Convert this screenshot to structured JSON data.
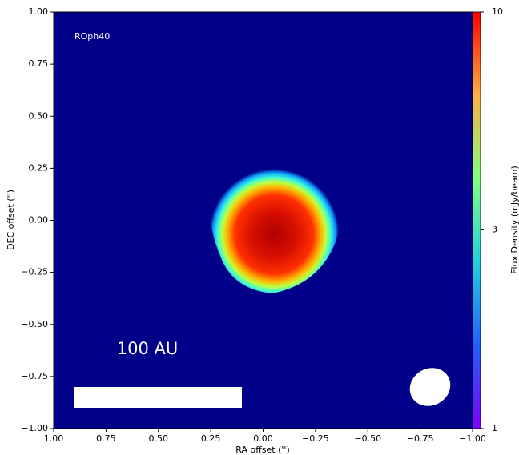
{
  "chart_data": {
    "type": "image",
    "annotations": [
      "ROph40",
      "100 AU"
    ],
    "xlabel": "RA offset ('')",
    "ylabel": "DEC offset ('')",
    "xlim": [
      1,
      -1
    ],
    "ylim": [
      -1,
      1
    ],
    "xticks": [
      {
        "value": 1,
        "label": "1.00"
      },
      {
        "value": 0.75,
        "label": "0.75"
      },
      {
        "value": 0.5,
        "label": "0.50"
      },
      {
        "value": 0.25,
        "label": "0.25"
      },
      {
        "value": 0,
        "label": "0.00"
      },
      {
        "value": -0.25,
        "label": "−0.25"
      },
      {
        "value": -0.5,
        "label": "−0.50"
      },
      {
        "value": -0.75,
        "label": "−0.75"
      },
      {
        "value": -1,
        "label": "−1.00"
      }
    ],
    "yticks": [
      {
        "value": -1,
        "label": "−1.00"
      },
      {
        "value": -0.75,
        "label": "−0.75"
      },
      {
        "value": -0.5,
        "label": "−0.50"
      },
      {
        "value": -0.25,
        "label": "−0.25"
      },
      {
        "value": 0,
        "label": "0.00"
      },
      {
        "value": 0.25,
        "label": "0.25"
      },
      {
        "value": 0.5,
        "label": "0.50"
      },
      {
        "value": 0.75,
        "label": "0.75"
      },
      {
        "value": 1,
        "label": "1.00"
      }
    ],
    "colorbar": {
      "label": "Flux Density (mJy/beam)",
      "log_scale": true,
      "lim": [
        1,
        10
      ],
      "ticks": [
        1,
        3,
        10
      ]
    }
  }
}
